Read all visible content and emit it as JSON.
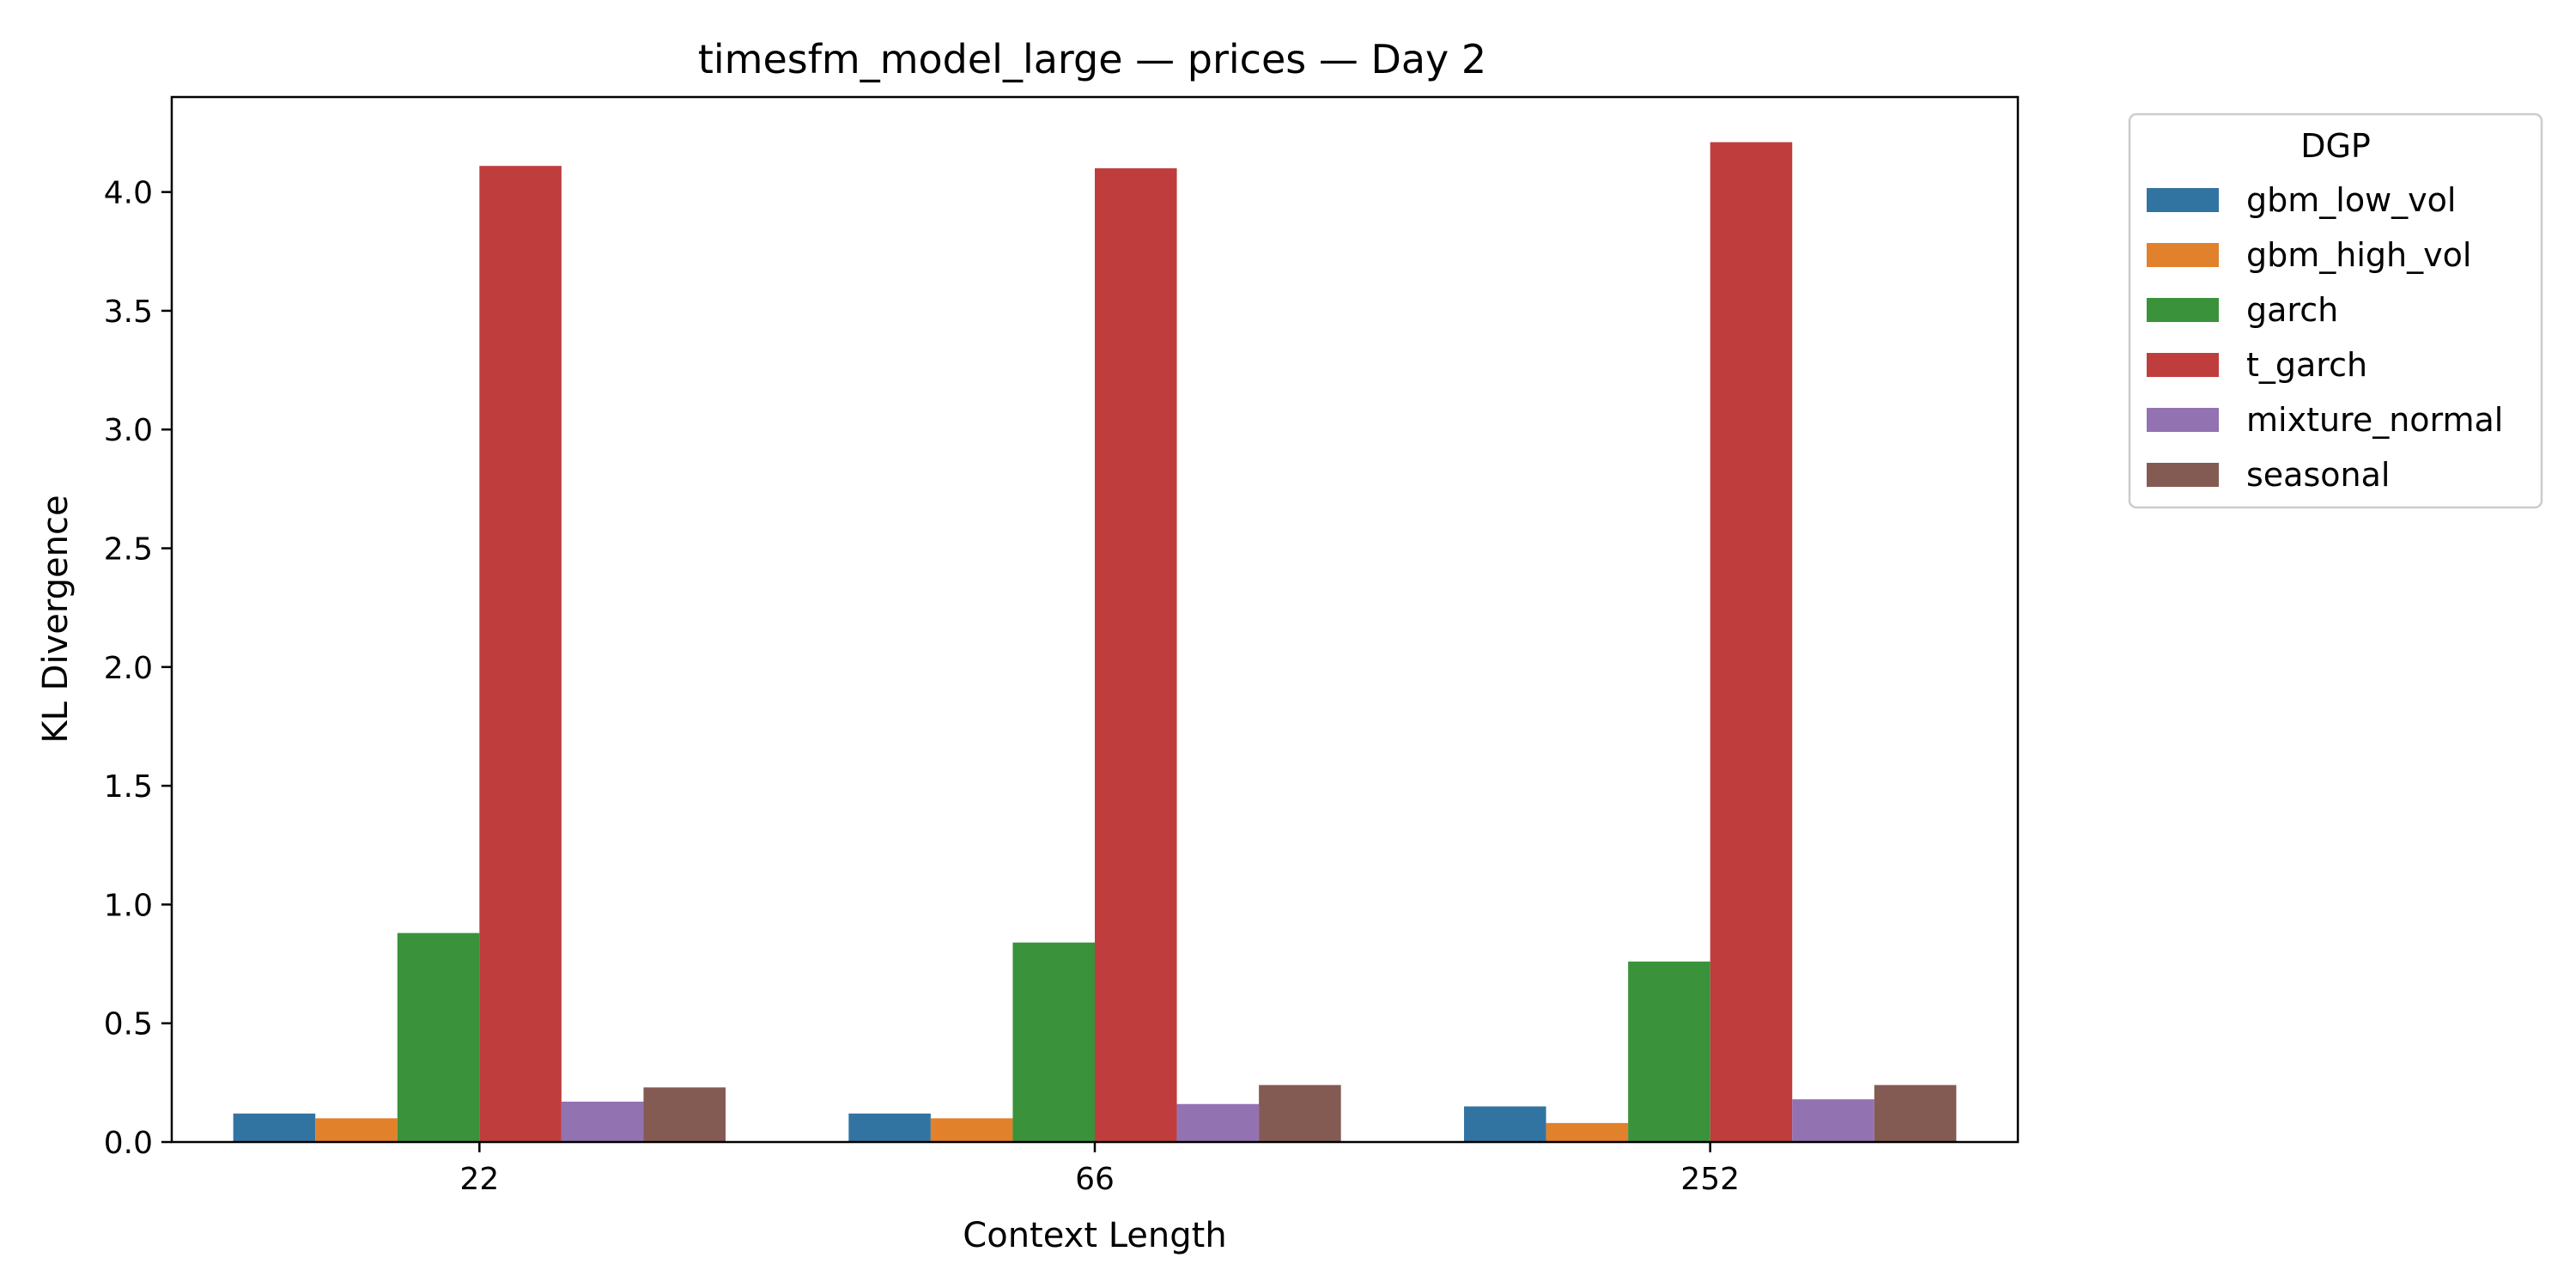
{
  "chart_data": {
    "type": "bar",
    "title": "timesfm_model_large — prices — Day 2",
    "xlabel": "Context Length",
    "ylabel": "KL Divergence",
    "categories": [
      "22",
      "66",
      "252"
    ],
    "ylim": [
      0,
      4.4
    ],
    "yticks": [
      "0.0",
      "0.5",
      "1.0",
      "1.5",
      "2.0",
      "2.5",
      "3.0",
      "3.5",
      "4.0"
    ],
    "grid": false,
    "legend": {
      "title": "DGP",
      "position": "outside-top-right"
    },
    "series": [
      {
        "name": "gbm_low_vol",
        "color": "#3274a1",
        "values": [
          0.12,
          0.12,
          0.15
        ]
      },
      {
        "name": "gbm_high_vol",
        "color": "#e1812c",
        "values": [
          0.1,
          0.1,
          0.08
        ]
      },
      {
        "name": "garch",
        "color": "#3a923a",
        "values": [
          0.88,
          0.84,
          0.76
        ]
      },
      {
        "name": "t_garch",
        "color": "#c03d3e",
        "values": [
          4.11,
          4.1,
          4.21
        ]
      },
      {
        "name": "mixture_normal",
        "color": "#9372b2",
        "values": [
          0.17,
          0.16,
          0.18
        ]
      },
      {
        "name": "seasonal",
        "color": "#845b53",
        "values": [
          0.23,
          0.24,
          0.24
        ]
      }
    ]
  }
}
